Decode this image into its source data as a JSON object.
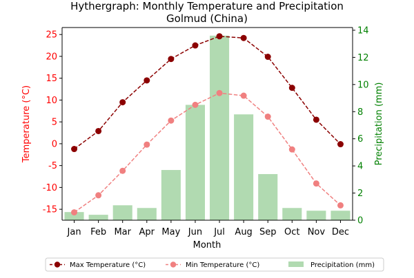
{
  "chart_data": {
    "type": "bar+line",
    "title_lines": [
      "Hythergraph: Monthly Temperature and Precipitation",
      "Golmud (China)"
    ],
    "xlabel": "Month",
    "ylabel_left": "Temperature (°C)",
    "ylabel_right": "Precipitation (mm)",
    "categories": [
      "Jan",
      "Feb",
      "Mar",
      "Apr",
      "May",
      "Jun",
      "Jul",
      "Aug",
      "Sep",
      "Oct",
      "Nov",
      "Dec"
    ],
    "ylim_left": [
      -17.5,
      26.6
    ],
    "ylim_right": [
      0,
      14.2
    ],
    "yticks_left": [
      -15,
      -10,
      -5,
      0,
      5,
      10,
      15,
      20,
      25
    ],
    "yticks_right": [
      0,
      2,
      4,
      6,
      8,
      10,
      12,
      14
    ],
    "series": [
      {
        "name": "Max Temperature (°C)",
        "axis": "left",
        "kind": "line",
        "style": "dashed-with-markers",
        "color": "#8b0000",
        "values": [
          -1.2,
          2.9,
          9.5,
          14.5,
          19.4,
          22.5,
          24.6,
          24.2,
          19.9,
          12.8,
          5.5,
          -0.1
        ]
      },
      {
        "name": "Min Temperature (°C)",
        "axis": "left",
        "kind": "line",
        "style": "dashed-with-markers",
        "color": "#f08080",
        "values": [
          -15.7,
          -11.8,
          -6.2,
          -0.2,
          5.3,
          8.9,
          11.6,
          11.0,
          6.2,
          -1.3,
          -9.1,
          -14.1
        ]
      },
      {
        "name": "Precipitation (mm)",
        "axis": "right",
        "kind": "bar",
        "color": "#8cc98c",
        "values": [
          0.6,
          0.4,
          1.1,
          0.9,
          3.7,
          8.5,
          13.6,
          7.8,
          3.4,
          0.9,
          0.7,
          0.7
        ]
      }
    ],
    "legend": {
      "placement": "bottom-center",
      "items": [
        "Max Temperature (°C)",
        "Min Temperature (°C)",
        "Precipitation (mm)"
      ]
    },
    "colors": {
      "left_axis": "#ff0000",
      "right_axis": "#008000",
      "frame": "#000000"
    },
    "grid": false
  }
}
